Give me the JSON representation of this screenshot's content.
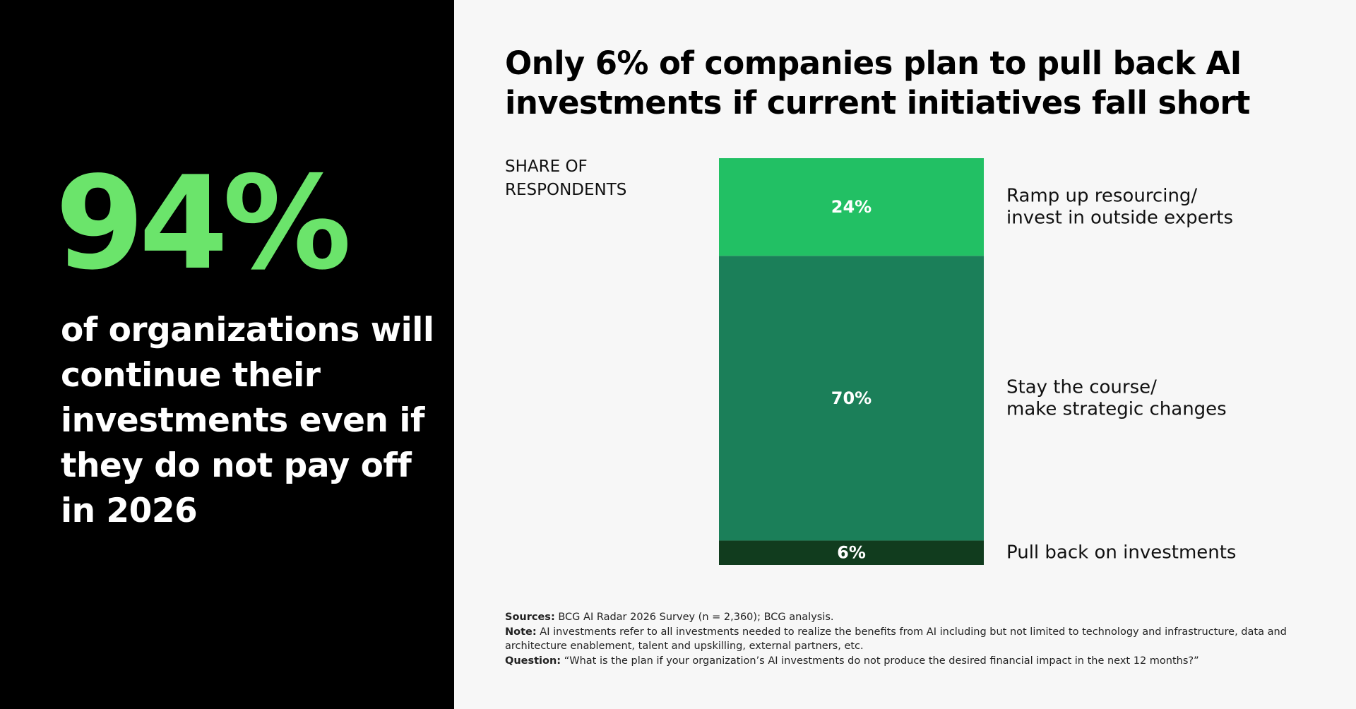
{
  "left_panel": {
    "big_stat": "94%",
    "statement": "of organizations will continue their investments even if they do not pay off in 2026"
  },
  "colors": {
    "left_background": "#000000",
    "right_background": "#f7f7f7",
    "big_stat": "#6be46b",
    "text_white": "#ffffff",
    "segment_top": "#22c064",
    "segment_middle": "#1b7f59",
    "segment_bottom": "#113c1e"
  },
  "chart_data": {
    "type": "bar",
    "stacked": true,
    "title": "Only 6% of companies plan to pull back AI investments if current initiatives fall short",
    "ylabel": "SHARE OF\nRESPONDENTS",
    "ylim": [
      0,
      100
    ],
    "grid": false,
    "legend": "right",
    "unit": "%",
    "segments": [
      {
        "name": "Pull back on investments",
        "value": 6,
        "label": "6%",
        "color": "#113c1e"
      },
      {
        "name": "Stay the course/\nmake strategic changes",
        "value": 70,
        "label": "70%",
        "color": "#1b7f59"
      },
      {
        "name": "Ramp up resourcing/\ninvest in outside experts",
        "value": 24,
        "label": "24%",
        "color": "#22c064"
      }
    ]
  },
  "footnotes": {
    "sources_label": "Sources:",
    "sources_text": " BCG AI Radar 2026 Survey (n = 2,360); BCG analysis.",
    "note_label": "Note:",
    "note_text": " AI investments refer to all investments needed to realize the benefits from AI including but not limited to technology and infrastructure, data and architecture enablement, talent and upskilling, external partners, etc.",
    "question_label": "Question:",
    "question_text": " “What is the plan if your organization’s AI investments do not produce the desired financial impact in the next 12 months?”"
  }
}
